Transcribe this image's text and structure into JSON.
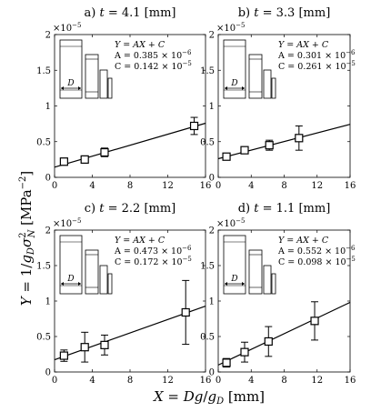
{
  "figure": {
    "ylabel": "Y = 1/g_D σ_N^2 [MPa^-2]",
    "xlabel": "X = Dg/g_D [mm]"
  },
  "chart_data": [
    {
      "type": "scatter",
      "title": "a) t = 4.1 [mm]",
      "title_prefix": "a)",
      "title_var": "t",
      "title_value": "= 4.1 [mm]",
      "exponent_label": "×10^-5",
      "xlim": [
        0,
        16
      ],
      "ylim": [
        0,
        2
      ],
      "xticks": [
        "0",
        "4",
        "8",
        "12",
        "16"
      ],
      "yticks": [
        "0",
        "0.5",
        "1",
        "1.5",
        "2"
      ],
      "points": [
        {
          "x": 1.0,
          "y": 0.22,
          "err": 0.05
        },
        {
          "x": 3.2,
          "y": 0.25,
          "err": 0.05
        },
        {
          "x": 5.3,
          "y": 0.35,
          "err": 0.06
        },
        {
          "x": 14.8,
          "y": 0.72,
          "err": 0.12
        }
      ],
      "fit": {
        "A": 0.0385,
        "C": 0.142
      },
      "annotation": [
        "Y = AX + C",
        "A = 0.385 × 10^-6",
        "C = 0.142 × 10^-5"
      ],
      "inset_label": "D"
    },
    {
      "type": "scatter",
      "title": "b) t = 3.3 [mm]",
      "title_prefix": "b)",
      "title_var": "t",
      "title_value": "= 3.3 [mm]",
      "exponent_label": "×10^-5",
      "xlim": [
        0,
        16
      ],
      "ylim": [
        0,
        2
      ],
      "xticks": [
        "0",
        "4",
        "8",
        "12",
        "16"
      ],
      "yticks": [
        "0",
        "0.5",
        "1",
        "1.5",
        "2"
      ],
      "points": [
        {
          "x": 1.0,
          "y": 0.29,
          "err": 0.04
        },
        {
          "x": 3.2,
          "y": 0.38,
          "err": 0.04
        },
        {
          "x": 6.2,
          "y": 0.45,
          "err": 0.07
        },
        {
          "x": 9.8,
          "y": 0.55,
          "err": 0.17
        }
      ],
      "fit": {
        "A": 0.0301,
        "C": 0.261
      },
      "annotation": [
        "Y = AX + C",
        "A = 0.301 × 10^-6",
        "C = 0.261 × 10^-5"
      ],
      "inset_label": "D"
    },
    {
      "type": "scatter",
      "title": "c) t = 2.2 [mm]",
      "title_prefix": "c)",
      "title_var": "t",
      "title_value": "= 2.2 [mm]",
      "exponent_label": "×10^-5",
      "xlim": [
        0,
        16
      ],
      "ylim": [
        0,
        2
      ],
      "xticks": [
        "0",
        "4",
        "8",
        "12",
        "16"
      ],
      "yticks": [
        "0",
        "0.5",
        "1",
        "1.5",
        "2"
      ],
      "points": [
        {
          "x": 1.0,
          "y": 0.23,
          "err": 0.08
        },
        {
          "x": 3.2,
          "y": 0.35,
          "err": 0.21
        },
        {
          "x": 5.3,
          "y": 0.38,
          "err": 0.14
        },
        {
          "x": 13.9,
          "y": 0.84,
          "err": 0.45
        }
      ],
      "fit": {
        "A": 0.0473,
        "C": 0.172
      },
      "annotation": [
        "Y = AX + C",
        "A = 0.473 × 10^-6",
        "C = 0.172 × 10^-5"
      ],
      "inset_label": "D"
    },
    {
      "type": "scatter",
      "title": "d) t = 1.1 [mm]",
      "title_prefix": "d)",
      "title_var": "t",
      "title_value": "= 1.1 [mm]",
      "exponent_label": "×10^-5",
      "xlim": [
        0,
        16
      ],
      "ylim": [
        0,
        2
      ],
      "xticks": [
        "0",
        "4",
        "8",
        "12",
        "16"
      ],
      "yticks": [
        "0",
        "0.5",
        "1",
        "1.5",
        "2"
      ],
      "points": [
        {
          "x": 1.0,
          "y": 0.13,
          "err": 0.06
        },
        {
          "x": 3.2,
          "y": 0.28,
          "err": 0.14
        },
        {
          "x": 6.1,
          "y": 0.43,
          "err": 0.21
        },
        {
          "x": 11.7,
          "y": 0.72,
          "err": 0.27
        }
      ],
      "fit": {
        "A": 0.0552,
        "C": 0.098
      },
      "annotation": [
        "Y = AX + C",
        "A = 0.552 × 10^-6",
        "C = 0.098 × 10^-5"
      ],
      "inset_label": "D"
    }
  ]
}
